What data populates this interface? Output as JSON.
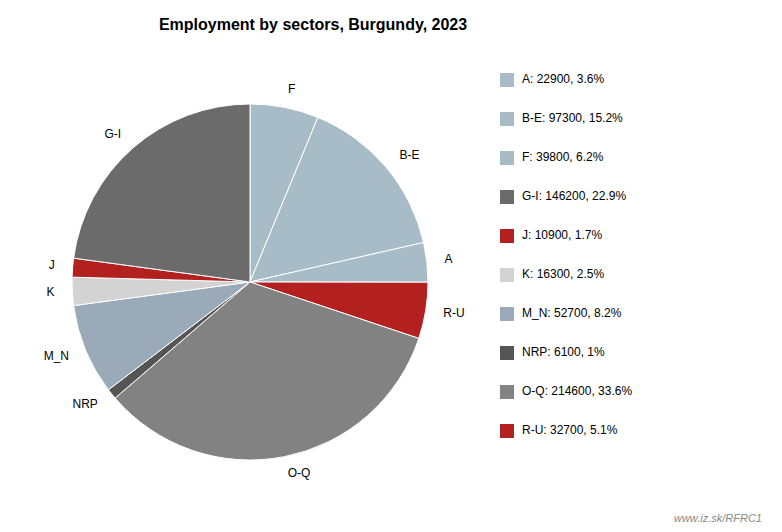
{
  "chart_data": {
    "type": "pie",
    "title": "Employment by sectors, Burgundy, 2023",
    "categories": [
      "F",
      "B-E",
      "A",
      "R-U",
      "O-Q",
      "NRP",
      "M_N",
      "K",
      "J",
      "G-I"
    ],
    "values": [
      39800,
      97300,
      22900,
      32700,
      214600,
      6100,
      52700,
      16300,
      10900,
      146200
    ],
    "colors": [
      "#a8bcc8",
      "#a8bcc8",
      "#a8bcc8",
      "#b22020",
      "#828282",
      "#555555",
      "#9aaab8",
      "#d3d3d3",
      "#b22020",
      "#6b6b6b"
    ],
    "legend_entries": [
      {
        "label": "A: 22900, 3.6%",
        "color": "#a8bcc8"
      },
      {
        "label": "B-E: 97300, 15.2%",
        "color": "#a8bcc8"
      },
      {
        "label": "F: 39800, 6.2%",
        "color": "#a8bcc8"
      },
      {
        "label": "G-I: 146200, 22.9%",
        "color": "#6b6b6b"
      },
      {
        "label": "J: 10900, 1.7%",
        "color": "#b22020"
      },
      {
        "label": "K: 16300, 2.5%",
        "color": "#d3d3d3"
      },
      {
        "label": "M_N: 52700, 8.2%",
        "color": "#9aaab8"
      },
      {
        "label": "NRP: 6100, 1%",
        "color": "#555555"
      },
      {
        "label": "O-Q: 214600, 33.6%",
        "color": "#828282"
      },
      {
        "label": "R-U: 32700, 5.1%",
        "color": "#b22020"
      }
    ],
    "annotations": [
      "www.iz.sk/RFRC1"
    ]
  }
}
